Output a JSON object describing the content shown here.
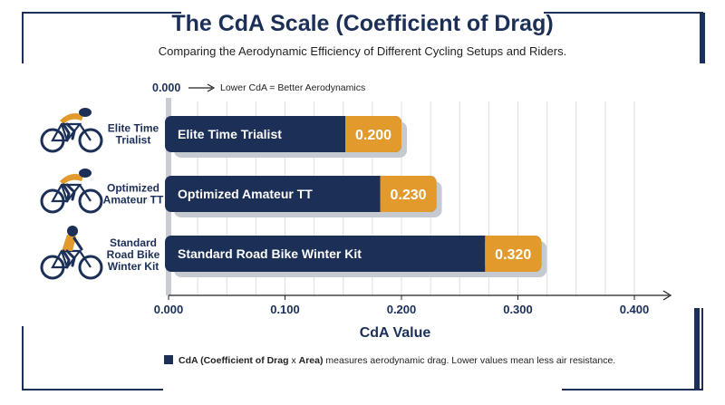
{
  "chart_data": {
    "type": "bar",
    "orientation": "horizontal",
    "title": "The CdA Scale (Coefficient of Drag)",
    "subtitle": "Comparing the Aerodynamic Efficiency of Different Cycling Setups and Riders.",
    "categories": [
      "Elite Time Trialist",
      "Optimized Amateur TT",
      "Standard Road Bike Winter Kit"
    ],
    "side_labels": [
      "Elite Time\nTrialist",
      "Optimized\nAmateur TT",
      "Standard\nRoad Bike\nWinter Kit"
    ],
    "values": [
      0.2,
      0.23,
      0.32
    ],
    "value_labels": [
      "0.200",
      "0.230",
      "0.320"
    ],
    "xlabel": "CdA Value",
    "xlim": [
      0,
      0.43
    ],
    "xticks": [
      0,
      0.1,
      0.2,
      0.3,
      0.4
    ],
    "xtick_labels": [
      "0.000",
      "0.100",
      "0.200",
      "0.300",
      "0.400"
    ],
    "top_axis_label": "0.000",
    "top_annotation": "Lower CdA = Better Aerodynamics",
    "grid": true,
    "legend": {
      "position": "bottom",
      "bold_text": "CdA (Coefficient of Drag",
      "x_text": "x",
      "bold_text2": "Area)",
      "text": "measures aerodynamic drag. Lower values mean less air resistance."
    },
    "colors": {
      "bar": "#1b2f57",
      "value_box": "#e29a2d",
      "bar_shadow": "#c5c9d0",
      "title": "#1b2f57",
      "accent": "#1b2f57"
    }
  },
  "icons": [
    "cyclist-tt-icon",
    "cyclist-tt-icon",
    "cyclist-road-icon"
  ]
}
